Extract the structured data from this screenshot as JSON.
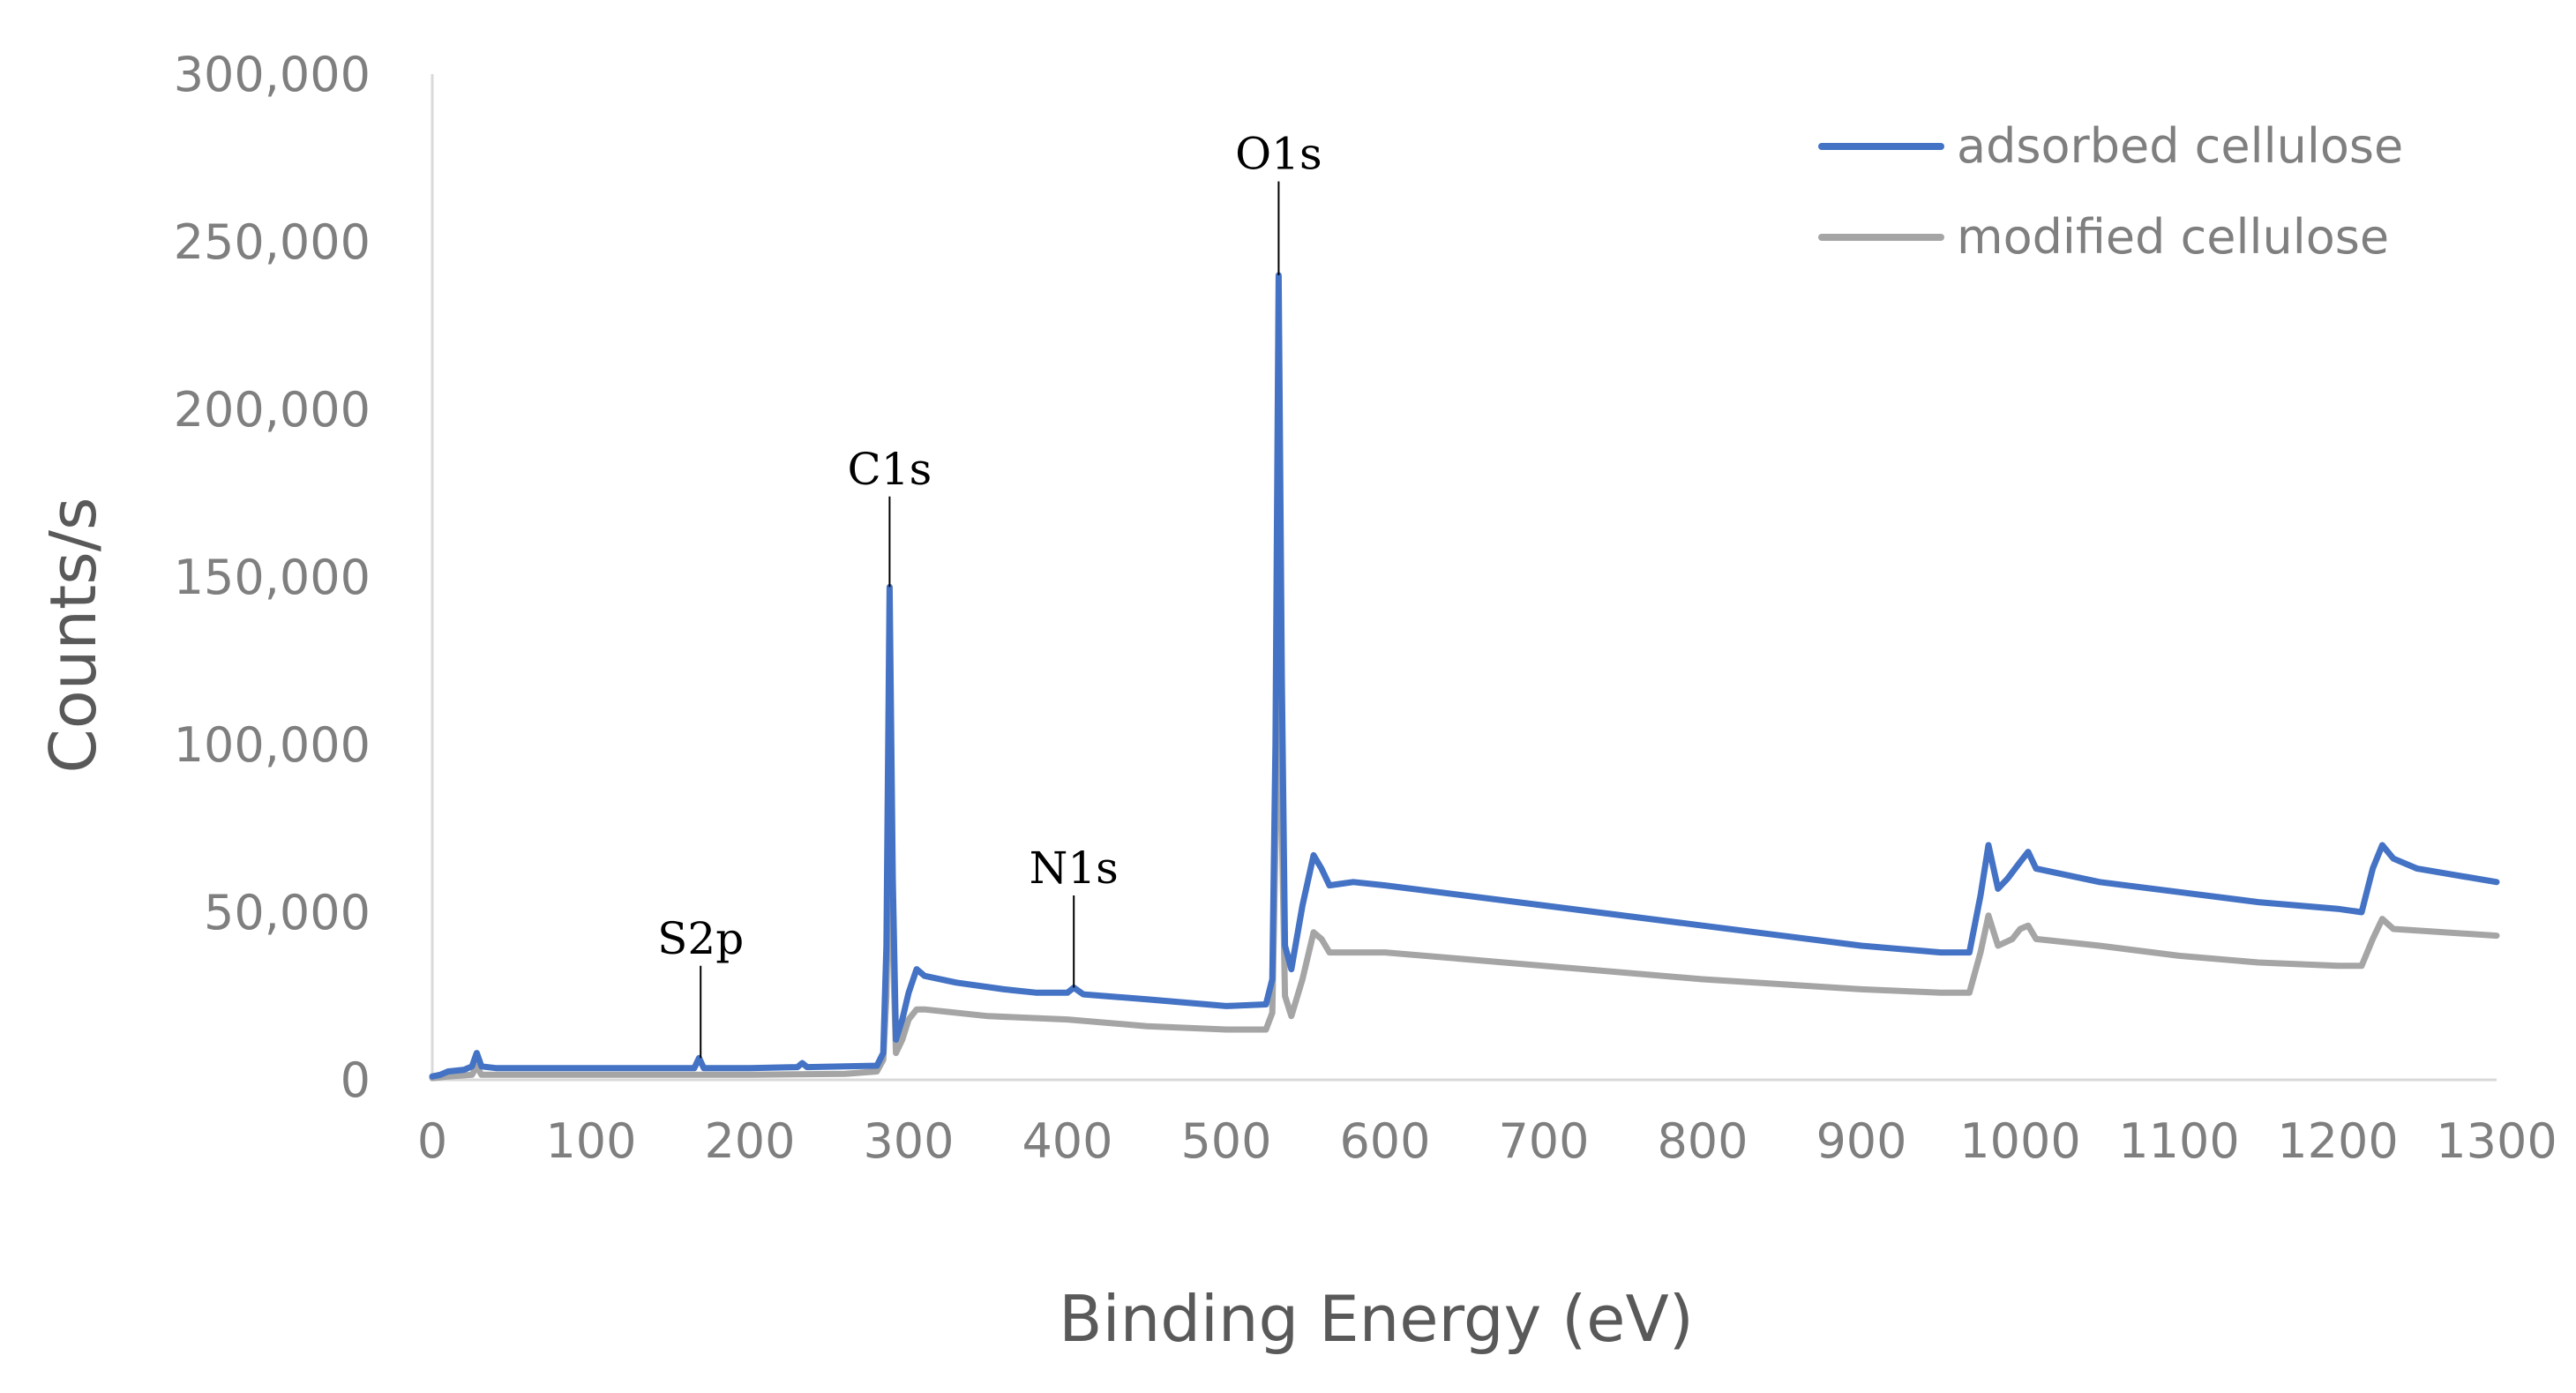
{
  "chart_data": {
    "type": "line",
    "title": "",
    "xlabel": "Binding Energy (eV)",
    "ylabel": "Counts/s",
    "xlim": [
      0,
      1300
    ],
    "ylim": [
      0,
      300000
    ],
    "x_ticks": [
      0,
      100,
      200,
      300,
      400,
      500,
      600,
      700,
      800,
      900,
      1000,
      1100,
      1200,
      1300
    ],
    "x_tick_labels": [
      "0",
      "100",
      "200",
      "300",
      "400",
      "500",
      "600",
      "700",
      "800",
      "900",
      "1000",
      "1100",
      "1200",
      "1300"
    ],
    "y_ticks": [
      0,
      50000,
      100000,
      150000,
      200000,
      250000,
      300000
    ],
    "y_tick_labels": [
      "0",
      "50,000",
      "100,000",
      "150,000",
      "200,000",
      "250,000",
      "300,000"
    ],
    "grid": false,
    "legend_position": "top-right",
    "series": [
      {
        "name": "adsorbed cellulose",
        "color": "#4472c4",
        "points": [
          [
            0,
            1000
          ],
          [
            5,
            1500
          ],
          [
            10,
            2500
          ],
          [
            20,
            3000
          ],
          [
            25,
            4000
          ],
          [
            28,
            8000
          ],
          [
            31,
            4000
          ],
          [
            40,
            3500
          ],
          [
            60,
            3500
          ],
          [
            100,
            3500
          ],
          [
            150,
            3500
          ],
          [
            165,
            3500
          ],
          [
            168,
            6500
          ],
          [
            171,
            3500
          ],
          [
            200,
            3500
          ],
          [
            230,
            3800
          ],
          [
            233,
            5000
          ],
          [
            236,
            3800
          ],
          [
            260,
            4000
          ],
          [
            280,
            4200
          ],
          [
            284,
            8000
          ],
          [
            286,
            40000
          ],
          [
            288,
            147000
          ],
          [
            290,
            60000
          ],
          [
            292,
            12000
          ],
          [
            296,
            18000
          ],
          [
            300,
            26000
          ],
          [
            305,
            33000
          ],
          [
            310,
            31000
          ],
          [
            330,
            29000
          ],
          [
            360,
            27000
          ],
          [
            380,
            26000
          ],
          [
            400,
            26000
          ],
          [
            404,
            27500
          ],
          [
            410,
            25500
          ],
          [
            450,
            24000
          ],
          [
            500,
            22000
          ],
          [
            525,
            22500
          ],
          [
            529,
            30000
          ],
          [
            531,
            100000
          ],
          [
            533,
            240000
          ],
          [
            535,
            120000
          ],
          [
            537,
            40000
          ],
          [
            541,
            33000
          ],
          [
            548,
            52000
          ],
          [
            555,
            67000
          ],
          [
            560,
            63000
          ],
          [
            565,
            58000
          ],
          [
            580,
            59000
          ],
          [
            600,
            58000
          ],
          [
            700,
            52000
          ],
          [
            800,
            46000
          ],
          [
            900,
            40000
          ],
          [
            950,
            38000
          ],
          [
            968,
            38000
          ],
          [
            975,
            55000
          ],
          [
            980,
            70000
          ],
          [
            986,
            57000
          ],
          [
            992,
            60000
          ],
          [
            1000,
            65000
          ],
          [
            1005,
            68000
          ],
          [
            1010,
            63000
          ],
          [
            1050,
            59000
          ],
          [
            1100,
            56000
          ],
          [
            1150,
            53000
          ],
          [
            1200,
            51000
          ],
          [
            1215,
            50000
          ],
          [
            1222,
            63000
          ],
          [
            1228,
            70000
          ],
          [
            1235,
            66000
          ],
          [
            1250,
            63000
          ],
          [
            1300,
            59000
          ]
        ]
      },
      {
        "name": "modified cellulose",
        "color": "#a5a5a5",
        "points": [
          [
            0,
            500
          ],
          [
            10,
            1000
          ],
          [
            25,
            1500
          ],
          [
            28,
            4000
          ],
          [
            31,
            1500
          ],
          [
            60,
            1500
          ],
          [
            100,
            1500
          ],
          [
            168,
            1500
          ],
          [
            200,
            1500
          ],
          [
            260,
            1800
          ],
          [
            280,
            2500
          ],
          [
            284,
            6000
          ],
          [
            286,
            25000
          ],
          [
            288,
            87000
          ],
          [
            290,
            40000
          ],
          [
            292,
            8000
          ],
          [
            296,
            12000
          ],
          [
            300,
            18000
          ],
          [
            305,
            21000
          ],
          [
            310,
            21000
          ],
          [
            350,
            19000
          ],
          [
            400,
            18000
          ],
          [
            450,
            16000
          ],
          [
            500,
            15000
          ],
          [
            525,
            15000
          ],
          [
            529,
            20000
          ],
          [
            531,
            70000
          ],
          [
            533,
            148000
          ],
          [
            535,
            75000
          ],
          [
            537,
            25000
          ],
          [
            541,
            19000
          ],
          [
            548,
            30000
          ],
          [
            555,
            44000
          ],
          [
            560,
            42000
          ],
          [
            565,
            38000
          ],
          [
            600,
            38000
          ],
          [
            700,
            34000
          ],
          [
            800,
            30000
          ],
          [
            900,
            27000
          ],
          [
            950,
            26000
          ],
          [
            968,
            26000
          ],
          [
            975,
            38000
          ],
          [
            980,
            49000
          ],
          [
            986,
            40000
          ],
          [
            995,
            42000
          ],
          [
            1000,
            45000
          ],
          [
            1005,
            46000
          ],
          [
            1010,
            42000
          ],
          [
            1050,
            40000
          ],
          [
            1100,
            37000
          ],
          [
            1150,
            35000
          ],
          [
            1200,
            34000
          ],
          [
            1215,
            34000
          ],
          [
            1222,
            42000
          ],
          [
            1228,
            48000
          ],
          [
            1235,
            45000
          ],
          [
            1300,
            43000
          ]
        ]
      }
    ],
    "annotations": [
      {
        "text": "S2p",
        "x": 169,
        "y_top": 34000,
        "y_bottom": 6500
      },
      {
        "text": "C1s",
        "x": 288,
        "y_top": 174000,
        "y_bottom": 147000
      },
      {
        "text": "N1s",
        "x": 404,
        "y_top": 55000,
        "y_bottom": 27500
      },
      {
        "text": "O1s",
        "x": 533,
        "y_top": 268000,
        "y_bottom": 240000
      }
    ]
  }
}
